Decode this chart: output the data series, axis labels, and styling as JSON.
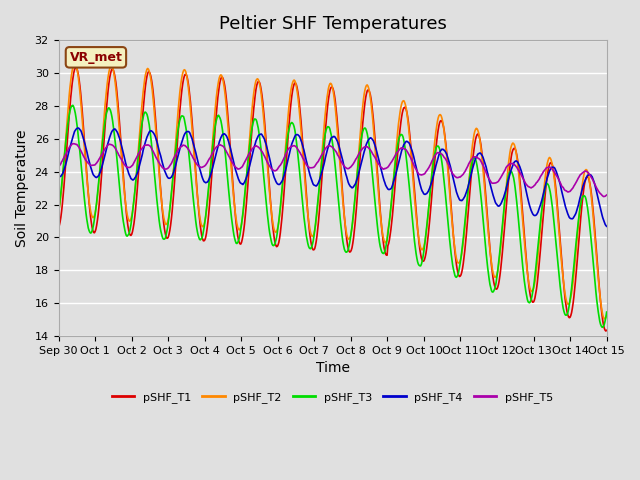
{
  "title": "Peltier SHF Temperatures",
  "xlabel": "Time",
  "ylabel": "Soil Temperature",
  "ylim": [
    14,
    32
  ],
  "annotation": "VR_met",
  "x_tick_labels": [
    "Sep 30",
    "Oct 1",
    "Oct 2",
    "Oct 3",
    "Oct 4",
    "Oct 5",
    "Oct 6",
    "Oct 7",
    "Oct 8",
    "Oct 9",
    "Oct 10",
    "Oct 11",
    "Oct 12",
    "Oct 13",
    "Oct 14",
    "Oct 15"
  ],
  "background_color": "#e0e0e0",
  "plot_bg_color": "#e0e0e0",
  "line_colors": {
    "pSHF_T1": "#dd0000",
    "pSHF_T2": "#ff8800",
    "pSHF_T3": "#00dd00",
    "pSHF_T4": "#0000cc",
    "pSHF_T5": "#aa00aa"
  },
  "grid_color": "#ffffff",
  "title_fontsize": 13,
  "label_fontsize": 10
}
